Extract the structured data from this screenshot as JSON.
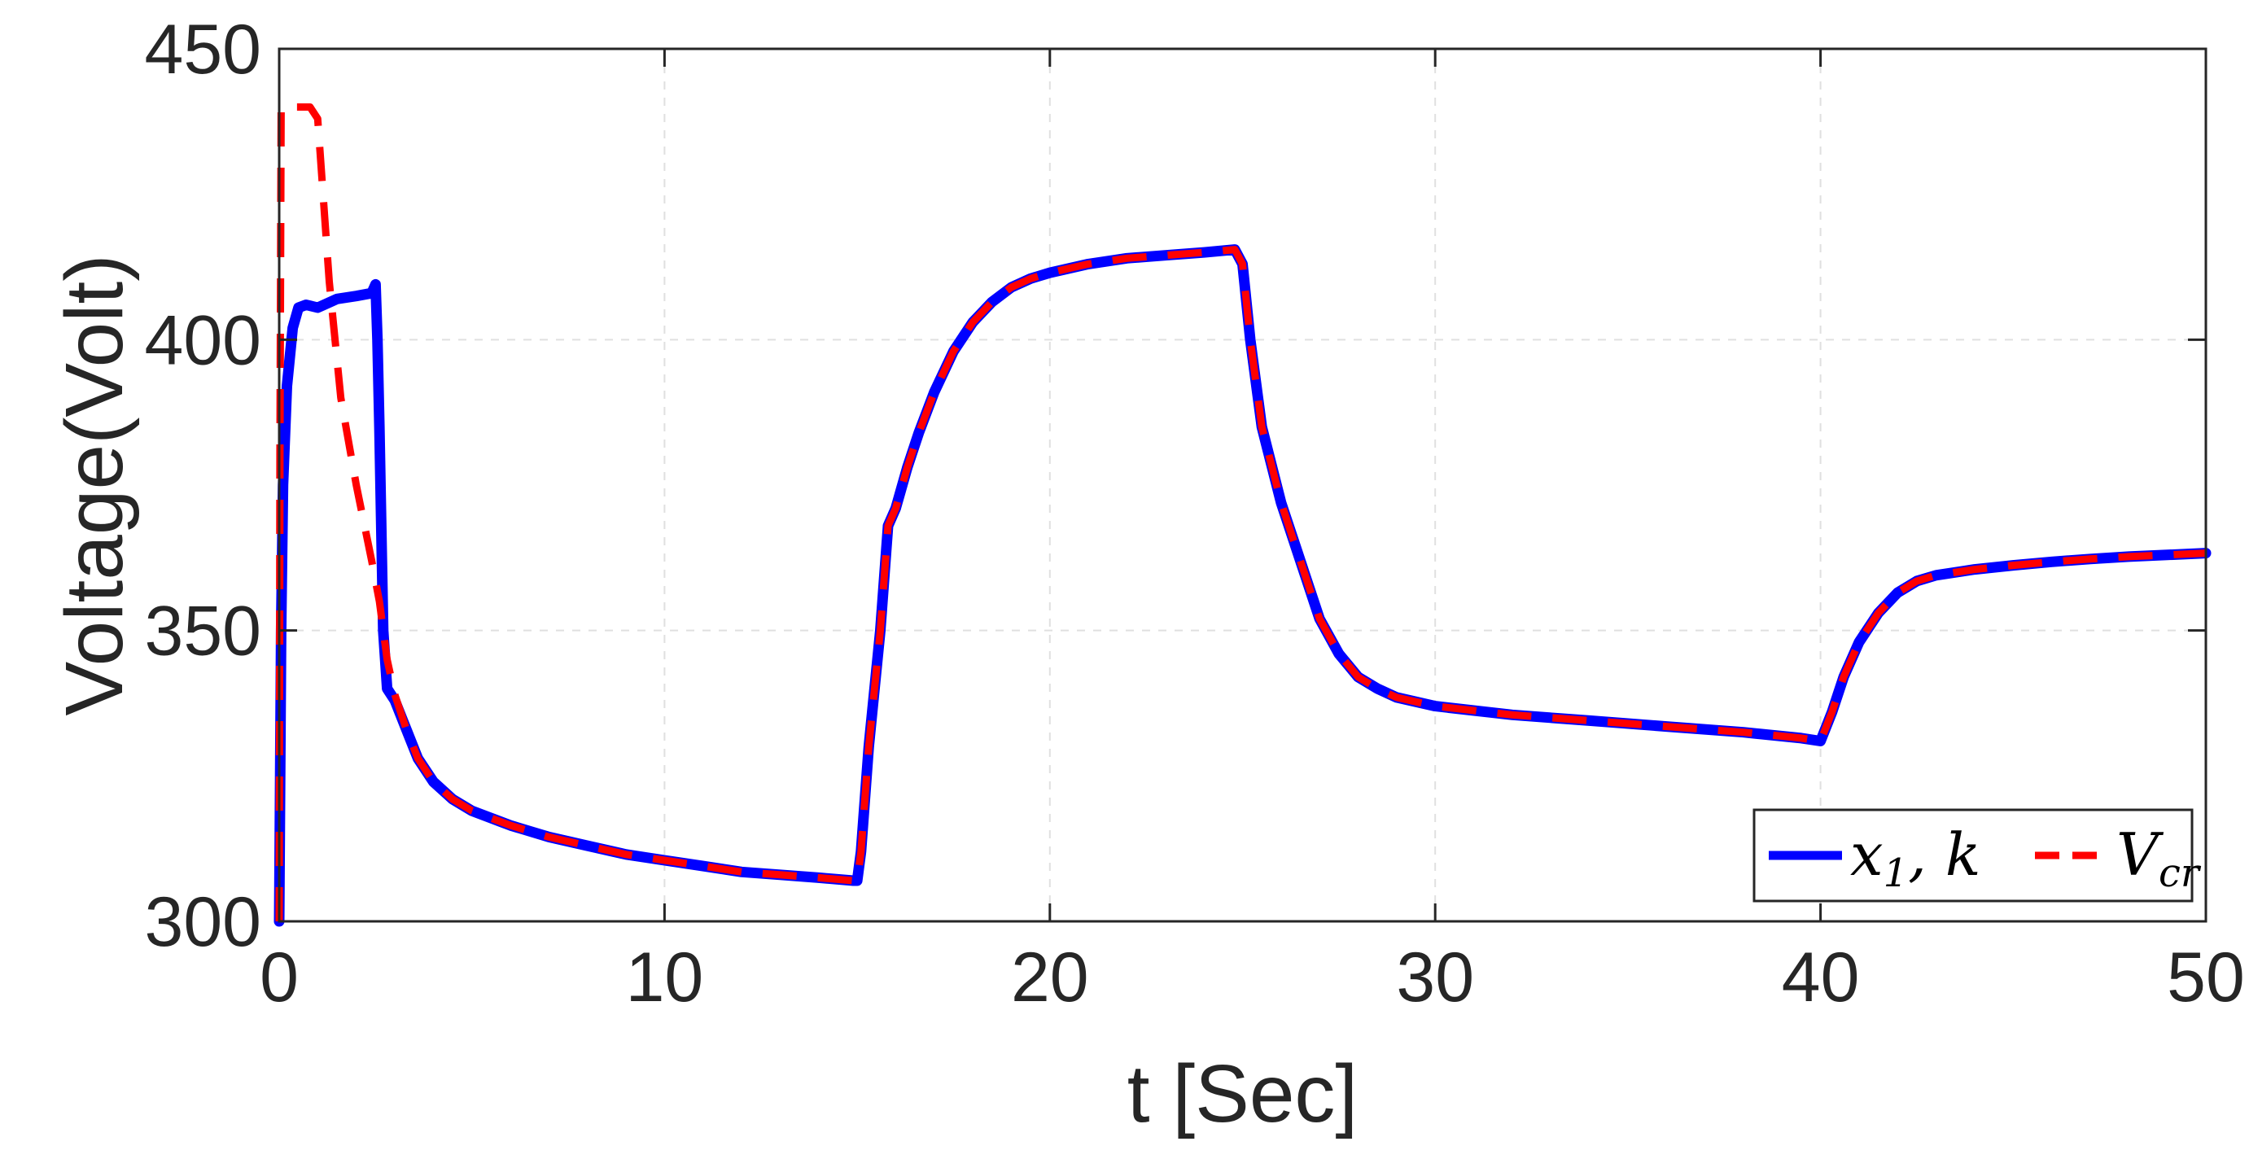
{
  "chart_data": {
    "type": "line",
    "title": "",
    "xlabel": "t [Sec]",
    "ylabel": "Voltage(Volt)",
    "xlim": [
      0,
      50
    ],
    "ylim": [
      300,
      450
    ],
    "xticks": [
      0,
      10,
      20,
      30,
      40,
      50
    ],
    "xtick_labels": [
      "0",
      "10",
      "20",
      "30",
      "40",
      "50"
    ],
    "yticks": [
      300,
      350,
      400,
      450
    ],
    "ytick_labels": [
      "300",
      "350",
      "400",
      "450"
    ],
    "grid": true,
    "legend_position": "bottom-right",
    "colors": {
      "x1k": "#0000ff",
      "Vcr": "#ff0000",
      "axis": "#262626",
      "grid": "#e0e0e0"
    },
    "series": [
      {
        "name": "x1,k",
        "legend_main": "x",
        "legend_sub": "1",
        "legend_tail": ", k",
        "style": "solid",
        "color": "#0000ff",
        "x": [
          0,
          0.05,
          0.1,
          0.2,
          0.35,
          0.5,
          0.7,
          1.0,
          1.5,
          2.0,
          2.4,
          2.5,
          2.55,
          2.6,
          2.7,
          2.8,
          3.0,
          3.3,
          3.6,
          4.0,
          4.5,
          5,
          6,
          7,
          8,
          9,
          10,
          11,
          12,
          13,
          14,
          14.9,
          15.0,
          15.1,
          15.3,
          15.6,
          15.8,
          16.0,
          16.3,
          16.6,
          17,
          17.5,
          18,
          18.5,
          19,
          19.5,
          20,
          21,
          22,
          23,
          24,
          24.8,
          25.0,
          25.2,
          25.5,
          26,
          26.5,
          27,
          27.5,
          28,
          28.5,
          29,
          30,
          32,
          34,
          36,
          38,
          39.5,
          40.0,
          40.3,
          40.6,
          41,
          41.5,
          42,
          42.5,
          43,
          44,
          45,
          46,
          47,
          48,
          49,
          50
        ],
        "y": [
          300,
          350,
          375,
          392,
          402,
          405.5,
          406,
          405.5,
          407,
          407.5,
          408,
          409.5,
          400,
          385,
          350,
          340,
          338,
          333,
          328,
          324,
          321,
          319,
          316.5,
          314.5,
          313,
          311.5,
          310.5,
          309.5,
          308.5,
          308,
          307.5,
          307,
          307,
          312,
          330,
          350,
          368,
          371,
          378,
          384,
          391,
          398,
          403,
          406.5,
          409,
          410.5,
          411.5,
          413,
          414,
          414.5,
          415,
          415.5,
          413,
          400,
          385,
          372,
          362,
          352,
          346,
          342,
          340,
          338.5,
          337,
          335.5,
          334.5,
          333.5,
          332.5,
          331.5,
          331,
          336,
          342,
          348,
          353,
          356.5,
          358.5,
          359.5,
          360.5,
          361.2,
          361.8,
          362.3,
          362.7,
          363,
          363.3
        ]
      },
      {
        "name": "Vcr",
        "legend_main": "V",
        "legend_sub": "cr",
        "legend_tail": "",
        "style": "dashed",
        "color": "#ff0000",
        "x": [
          0,
          0.02,
          0.05,
          0.8,
          1.0,
          1.3,
          1.6,
          2.0,
          2.4,
          2.6,
          2.8,
          3.0,
          3.3,
          3.6,
          4.0,
          4.5,
          5,
          6,
          7,
          8,
          9,
          10,
          11,
          12,
          13,
          14,
          14.9,
          15.0,
          15.1,
          15.3,
          15.6,
          15.8,
          16.0,
          16.3,
          16.6,
          17,
          17.5,
          18,
          18.5,
          19,
          19.5,
          20,
          21,
          22,
          23,
          24,
          24.8,
          25.0,
          25.2,
          25.5,
          26,
          26.5,
          27,
          27.5,
          28,
          28.5,
          29,
          30,
          32,
          34,
          36,
          38,
          39.5,
          40.0,
          40.3,
          40.6,
          41,
          41.5,
          42,
          42.5,
          43,
          44,
          45,
          46,
          47,
          48,
          49,
          50
        ],
        "y": [
          300,
          380,
          440,
          440,
          438,
          410,
          390,
          375,
          362,
          355,
          345,
          339,
          333,
          328,
          324,
          321,
          319,
          316.5,
          314.5,
          313,
          311.5,
          310.5,
          309.5,
          308.5,
          308,
          307.5,
          307,
          307,
          312,
          330,
          350,
          368,
          371,
          378,
          384,
          391,
          398,
          403,
          406.5,
          409,
          410.5,
          411.5,
          413,
          414,
          414.5,
          415,
          415.5,
          413,
          400,
          385,
          372,
          362,
          352,
          346,
          342,
          340,
          338.5,
          337,
          335.5,
          334.5,
          333.5,
          332.5,
          331.5,
          331,
          336,
          342,
          348,
          353,
          356.5,
          358.5,
          359.5,
          360.5,
          361.2,
          361.8,
          362.3,
          362.7,
          363,
          363.3
        ]
      }
    ]
  }
}
